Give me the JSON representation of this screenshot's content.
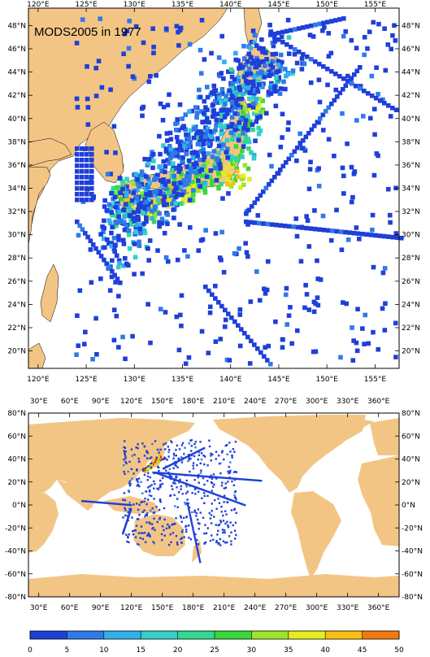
{
  "top_map": {
    "title": "MODS2005 in 1977",
    "lon_ticks": [
      "120°E",
      "125°E",
      "130°E",
      "135°E",
      "140°E",
      "145°E",
      "150°E",
      "155°E"
    ],
    "lat_ticks": [
      "48°N",
      "46°N",
      "44°N",
      "42°N",
      "40°N",
      "38°N",
      "36°N",
      "34°N",
      "32°N",
      "30°N",
      "28°N",
      "26°N",
      "24°N",
      "22°N",
      "20°N"
    ],
    "lon_range": [
      119,
      157.5
    ],
    "lat_range": [
      18.5,
      49.5
    ]
  },
  "bottom_map": {
    "lon_ticks": [
      "30°E",
      "60°E",
      "90°E",
      "120°E",
      "150°E",
      "180°E",
      "210°E",
      "240°E",
      "270°E",
      "300°E",
      "330°E",
      "360°E"
    ],
    "lat_ticks": [
      "80°N",
      "60°N",
      "40°N",
      "20°N",
      "0°N",
      "-20°N",
      "-40°N",
      "-60°N",
      "-80°N"
    ],
    "lon_range": [
      20,
      380
    ],
    "lat_range": [
      -80,
      80
    ]
  },
  "colorbar": {
    "labels": [
      "0",
      "5",
      "10",
      "15",
      "20",
      "25",
      "30",
      "35",
      "40",
      "45",
      "50"
    ],
    "colors": [
      "#1f3fd9",
      "#2f7ae8",
      "#30b0ea",
      "#32d0c8",
      "#30d890",
      "#38d838",
      "#9ee42a",
      "#e6ec1e",
      "#f8c012",
      "#f07a10",
      "#e01c0c"
    ]
  },
  "colors": {
    "land": "#f3c585",
    "ocean": "#ffffff",
    "frame": "#000000"
  }
}
